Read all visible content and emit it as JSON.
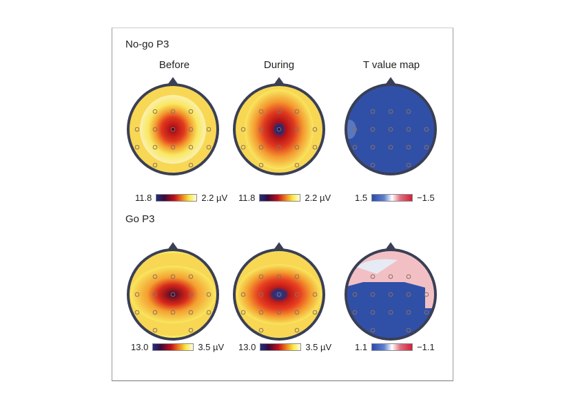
{
  "panels": [
    {
      "title": "No-go P3",
      "colorbars": [
        {
          "min": "11.8",
          "max": "2.2 µV"
        },
        {
          "min": "11.8",
          "max": "2.2 µV"
        },
        {
          "min": "1.5",
          "max": "−1.5"
        }
      ]
    },
    {
      "title": "Go P3",
      "colorbars": [
        {
          "min": "13.0",
          "max": "3.5 µV"
        },
        {
          "min": "13.0",
          "max": "3.5 µV"
        },
        {
          "min": "1.1",
          "max": "−1.1"
        }
      ]
    }
  ],
  "columns": [
    "Before",
    "During",
    "T value map"
  ],
  "colors": {
    "head_outline": "#3a3f55",
    "sequential": [
      "#1f2f80",
      "#3a0a3a",
      "#c0101a",
      "#f08020",
      "#f8e840",
      "#fffbe8"
    ],
    "diverging": [
      "#2a4ab0",
      "#ffffff",
      "#d0203a"
    ]
  }
}
